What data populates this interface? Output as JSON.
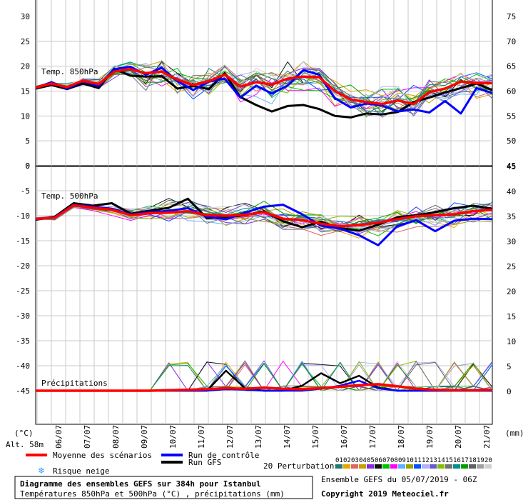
{
  "chart_data": {
    "type": "line",
    "title": "Diagramme des ensembles GEFS sur 384h pour Istanbul",
    "subtitle": "Températures 850hPa et 500hPa (°C) , précipitations (mm)",
    "left_axis_unit": "(°C)",
    "right_axis_unit": "(mm)",
    "altitude": "Alt. 58m",
    "x_tick_labels": [
      "06/07",
      "07/07",
      "08/07",
      "09/07",
      "10/07",
      "11/07",
      "12/07",
      "13/07",
      "14/07",
      "15/07",
      "16/07",
      "17/07",
      "18/07",
      "19/07",
      "20/07",
      "21/07"
    ],
    "grid": true,
    "panels": {
      "t850": {
        "label": "Temp. 850hPa",
        "left_ticks": [
          "30",
          "25",
          "20",
          "15",
          "10",
          "5",
          "0"
        ],
        "right_ticks": [
          "75",
          "70",
          "65",
          "60",
          "55",
          "50",
          "45"
        ],
        "ylim": [
          0,
          30
        ],
        "series": [
          {
            "name": "Moyenne des scénarios",
            "color": "#ff0000",
            "values": [
              15.7,
              16.5,
              15.8,
              17.1,
              16.4,
              18.9,
              19.4,
              18.6,
              18.9,
              17.3,
              16.2,
              17.0,
              18.3,
              15.9,
              16.8,
              16.3,
              17.5,
              17.9,
              17.8,
              15.0,
              13.3,
              12.8,
              12.4,
              13.1,
              12.4,
              14.8,
              15.5,
              16.9,
              16.6,
              16.6
            ]
          },
          {
            "name": "Run de contrôle",
            "color": "#0000ff",
            "values": [
              15.6,
              16.8,
              15.5,
              17.0,
              16.0,
              19.4,
              19.9,
              18.3,
              19.7,
              17.0,
              15.2,
              16.9,
              17.5,
              13.7,
              16.1,
              14.5,
              16.1,
              19.2,
              18.3,
              13.6,
              11.7,
              12.5,
              12.1,
              10.9,
              11.3,
              10.7,
              13.0,
              10.5,
              15.6,
              14.6
            ]
          },
          {
            "name": "Run GFS",
            "color": "#000000",
            "values": [
              15.5,
              16.2,
              15.4,
              16.5,
              15.6,
              19.5,
              18.1,
              17.9,
              18.0,
              15.5,
              16.0,
              15.4,
              18.6,
              13.8,
              12.2,
              10.9,
              12.0,
              12.2,
              11.4,
              10.0,
              9.7,
              10.5,
              10.3,
              10.8,
              12.8,
              13.7,
              14.7,
              15.6,
              16.5,
              15.2
            ]
          }
        ]
      },
      "t500": {
        "label": "Temp. 500hPa",
        "left_ticks": [
          "-5",
          "-10",
          "-15",
          "-20",
          "-25",
          "-30",
          "-35",
          "-40",
          "-45"
        ],
        "right_ticks": [
          "45",
          "40",
          "35",
          "30",
          "25",
          "20",
          "15",
          "10",
          "5",
          "0"
        ],
        "ylim": [
          -50,
          0
        ],
        "series": [
          {
            "name": "Moyenne des scénarios",
            "color": "#ff0000",
            "values": [
              -10.6,
              -10.4,
              -7.9,
              -8.4,
              -8.8,
              -9.9,
              -9.5,
              -9.4,
              -9.1,
              -9.9,
              -10.0,
              -9.8,
              -9.3,
              -10.6,
              -10.9,
              -11.6,
              -12.1,
              -11.9,
              -11.4,
              -10.7,
              -10.1,
              -9.9,
              -9.7,
              -9.1,
              -8.8
            ]
          },
          {
            "name": "Run de contrôle",
            "color": "#0000ff",
            "values": [
              -10.7,
              -10.3,
              -7.8,
              -8.2,
              -8.6,
              -9.8,
              -9.3,
              -9.0,
              -8.5,
              -10.2,
              -10.7,
              -9.4,
              -8.2,
              -7.8,
              -9.7,
              -12.0,
              -12.6,
              -13.9,
              -15.9,
              -12.1,
              -10.9,
              -13.1,
              -11.0,
              -10.6,
              -10.7
            ]
          },
          {
            "name": "Run GFS",
            "color": "#000000",
            "values": [
              -10.8,
              -10.2,
              -7.5,
              -8.0,
              -7.5,
              -9.6,
              -9.0,
              -8.4,
              -6.6,
              -10.5,
              -10.3,
              -9.9,
              -9.1,
              -11.1,
              -12.3,
              -11.2,
              -12.5,
              -13.0,
              -11.8,
              -10.3,
              -9.9,
              -9.3,
              -8.5,
              -8.0,
              -8.6
            ]
          }
        ]
      },
      "precip": {
        "label": "Précipitations",
        "right_ticks": [
          "45",
          "40",
          "35",
          "30",
          "25",
          "20",
          "15",
          "10",
          "5",
          "0"
        ],
        "series": [
          {
            "name": "Moyenne des scénarios",
            "color": "#ff0000",
            "values": [
              0,
              0,
              0,
              0,
              0,
              0,
              0,
              0.1,
              0.2,
              0.3,
              0.5,
              0.4,
              0.6,
              0.4,
              0.3,
              0.5,
              0.8,
              1.1,
              1.3,
              0.9,
              0.4,
              0.2,
              0.1,
              0.1,
              0.2
            ]
          },
          {
            "name": "Run de contrôle",
            "color": "#0000ff",
            "values": [
              0,
              0,
              0,
              0,
              0,
              0,
              0,
              0,
              0,
              0,
              0.3,
              0.2,
              0.0,
              0.0,
              0.0,
              0.4,
              1.0,
              2.0,
              0.5,
              0.0,
              0,
              0,
              0,
              0,
              0
            ]
          },
          {
            "name": "Run GFS",
            "color": "#000000",
            "values": [
              0,
              0,
              0,
              0,
              0,
              0,
              0,
              0,
              0,
              0,
              4.0,
              0.5,
              0.0,
              0.0,
              1.0,
              3.5,
              1.5,
              3.0,
              0.6,
              0.0,
              0,
              0,
              0,
              0,
              0
            ]
          }
        ]
      }
    },
    "legend": {
      "items": [
        {
          "name": "Moyenne des scénarios",
          "color": "#ff0000"
        },
        {
          "name": "Run de contrôle",
          "color": "#0000ff"
        },
        {
          "name": "Run GFS",
          "color": "#000000"
        },
        {
          "name": "Risque neige",
          "color": "#3399ff"
        }
      ],
      "perturbations_label": "20 Perturbations",
      "perturbation_numbers": [
        "01",
        "02",
        "03",
        "04",
        "05",
        "06",
        "07",
        "08",
        "09",
        "10",
        "11",
        "12",
        "13",
        "14",
        "15",
        "16",
        "17",
        "18",
        "19",
        "20"
      ],
      "perturbation_colors": [
        "#1f7a7a",
        "#e6a800",
        "#e06666",
        "#c8a000",
        "#8a2be2",
        "#111111",
        "#00c000",
        "#ff00ff",
        "#5fb0ff",
        "#a0a000",
        "#0050ff",
        "#b0b0ff",
        "#6a5acd",
        "#80c000",
        "#707070",
        "#009090",
        "#00a000",
        "#606060",
        "#a0a0a0",
        "#d0d0d0"
      ]
    },
    "footer": {
      "title": "Diagramme des ensembles GEFS sur 384h pour Istanbul",
      "subtitle": "Températures 850hPa et 500hPa (°C) , précipitations (mm)",
      "run_info": "Ensemble GEFS du 05/07/2019 - 06Z",
      "copyright": "Copyright 2019 Meteociel.fr"
    }
  }
}
